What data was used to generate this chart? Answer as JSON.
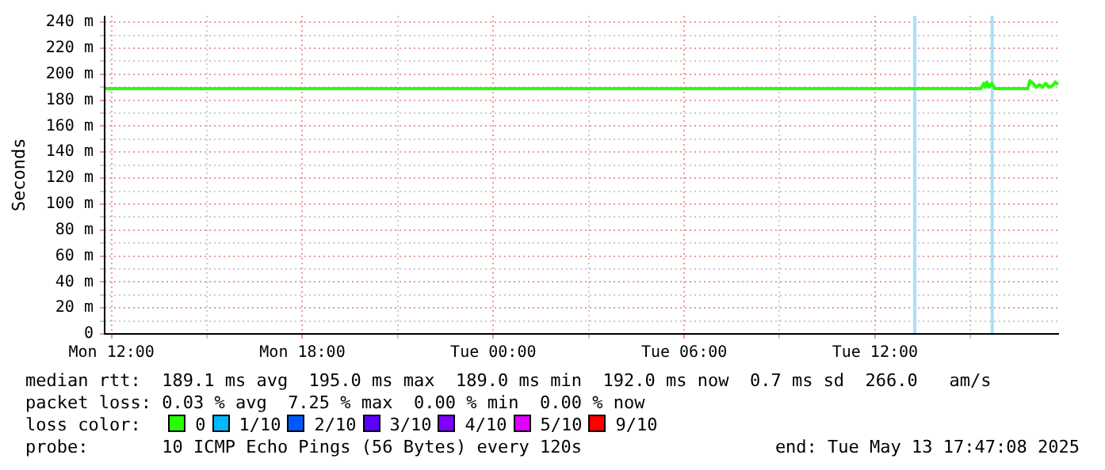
{
  "chart_data": {
    "type": "line",
    "ylabel": "Seconds",
    "x": [
      "2025-05-12T11:47",
      "2025-05-12T18:00",
      "2025-05-13T00:00",
      "2025-05-13T06:00",
      "2025-05-13T12:00",
      "2025-05-13T15:20",
      "2025-05-13T15:25",
      "2025-05-13T15:28",
      "2025-05-13T15:31",
      "2025-05-13T15:35",
      "2025-05-13T15:40",
      "2025-05-13T15:46",
      "2025-05-13T16:48",
      "2025-05-13T16:52",
      "2025-05-13T16:58",
      "2025-05-13T17:04",
      "2025-05-13T17:10",
      "2025-05-13T17:16",
      "2025-05-13T17:22",
      "2025-05-13T17:28",
      "2025-05-13T17:34",
      "2025-05-13T17:40",
      "2025-05-13T17:45"
    ],
    "series": [
      {
        "name": "0",
        "color": "#26ff00",
        "values": [
          189,
          189,
          189,
          189,
          189,
          189,
          193,
          190,
          194,
          190,
          193,
          189,
          189,
          195,
          193,
          190,
          192,
          190,
          193,
          190,
          191,
          194,
          192
        ]
      },
      {
        "name": "1/10",
        "color": "#00b8ff",
        "values": [
          null,
          null,
          null,
          null,
          null,
          null,
          null,
          null,
          null,
          null,
          null,
          null,
          null,
          null,
          null,
          null,
          null,
          null,
          null,
          null,
          null,
          null,
          null
        ]
      },
      {
        "name": "2/10",
        "color": "#0059ff",
        "values": [
          null,
          null,
          null,
          null,
          null,
          null,
          null,
          null,
          null,
          null,
          null,
          null,
          null,
          null,
          null,
          null,
          null,
          null,
          null,
          null,
          null,
          null,
          null
        ]
      },
      {
        "name": "3/10",
        "color": "#5e00ff",
        "values": [
          null,
          null,
          null,
          null,
          null,
          null,
          null,
          null,
          null,
          null,
          null,
          null,
          null,
          null,
          null,
          null,
          null,
          null,
          null,
          null,
          null,
          null,
          null
        ]
      },
      {
        "name": "4/10",
        "color": "#7e00ff",
        "values": [
          null,
          null,
          null,
          null,
          null,
          null,
          null,
          null,
          null,
          null,
          null,
          null,
          null,
          null,
          null,
          null,
          null,
          null,
          null,
          null,
          null,
          null,
          null
        ]
      },
      {
        "name": "5/10",
        "color": "#dd00ff",
        "values": [
          null,
          null,
          null,
          null,
          null,
          null,
          null,
          null,
          null,
          null,
          null,
          null,
          null,
          null,
          null,
          null,
          null,
          null,
          null,
          null,
          null,
          null,
          null
        ]
      },
      {
        "name": "9/10",
        "color": "#ff0000",
        "values": [
          null,
          null,
          null,
          null,
          null,
          null,
          null,
          null,
          null,
          null,
          null,
          null,
          null,
          null,
          null,
          null,
          null,
          null,
          null,
          null,
          null,
          null,
          null
        ]
      }
    ],
    "legend": "bottom",
    "legend_title": "loss color:",
    "grid": true,
    "marker": "none",
    "line_style": "solid",
    "xlim": [
      "2025-05-12T11:47",
      "2025-05-13T17:47"
    ],
    "xticks": [
      {
        "value": "2025-05-12T12:00",
        "label": "Mon 12:00"
      },
      {
        "value": "2025-05-12T15:00",
        "label": null
      },
      {
        "value": "2025-05-12T18:00",
        "label": "Mon 18:00"
      },
      {
        "value": "2025-05-12T21:00",
        "label": null
      },
      {
        "value": "2025-05-13T00:00",
        "label": "Tue 00:00"
      },
      {
        "value": "2025-05-13T03:00",
        "label": null
      },
      {
        "value": "2025-05-13T06:00",
        "label": "Tue 06:00"
      },
      {
        "value": "2025-05-13T09:00",
        "label": null
      },
      {
        "value": "2025-05-13T12:00",
        "label": "Tue 12:00"
      },
      {
        "value": "2025-05-13T15:00",
        "label": null
      }
    ],
    "ylim": [
      0,
      245
    ],
    "yticks": [
      0,
      {
        "value": 10,
        "label": null
      },
      {
        "value": 20,
        "label": "20 m"
      },
      {
        "value": 30,
        "label": null
      },
      {
        "value": 40,
        "label": "40 m"
      },
      {
        "value": 50,
        "label": null
      },
      {
        "value": 60,
        "label": "60 m"
      },
      {
        "value": 70,
        "label": null
      },
      {
        "value": 80,
        "label": "80 m"
      },
      {
        "value": 90,
        "label": null
      },
      {
        "value": 100,
        "label": "100 m"
      },
      {
        "value": 110,
        "label": null
      },
      {
        "value": 120,
        "label": "120 m"
      },
      {
        "value": 130,
        "label": null
      },
      {
        "value": 140,
        "label": "140 m"
      },
      {
        "value": 150,
        "label": null
      },
      {
        "value": 160,
        "label": "160 m"
      },
      {
        "value": 170,
        "label": null
      },
      {
        "value": 180,
        "label": "180 m"
      },
      {
        "value": 190,
        "label": null
      },
      {
        "value": 200,
        "label": "200 m"
      },
      {
        "value": 210,
        "label": null
      },
      {
        "value": 220,
        "label": "220 m"
      },
      {
        "value": 230,
        "label": null
      },
      {
        "value": 240,
        "label": "240 m"
      }
    ],
    "ref_lines": [
      {
        "axis": "x",
        "value": "2025-05-13T13:15",
        "label": null,
        "color": "#a8e0f8"
      },
      {
        "axis": "x",
        "value": "2025-05-13T15:41",
        "label": null,
        "color": "#a8e0f8"
      }
    ],
    "annotations": [
      "median rtt:  189.1 ms avg  195.0 ms max  189.0 ms min  192.0 ms now  0.7 ms sd  266.0   am/s",
      "packet loss: 0.03 % avg  7.25 % max  0.00 % min  0.00 % now",
      "probe:       10 ICMP Echo Pings (56 Bytes) every 120s",
      "end: Tue May 13 17:47:08 2025"
    ]
  }
}
